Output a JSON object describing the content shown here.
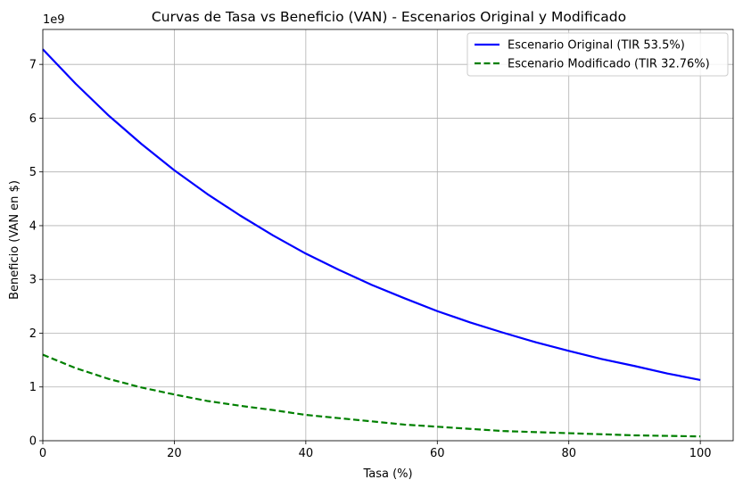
{
  "chart_data": {
    "type": "line",
    "title": "Curvas de Tasa vs Beneficio (VAN) - Escenarios Original y Modificado",
    "xlabel": "Tasa (%)",
    "ylabel": "Beneficio (VAN en $)",
    "y_offset_label": "1e9",
    "xlim": [
      0,
      105
    ],
    "ylim": [
      0,
      7.65
    ],
    "y_multiplier": 1000000000,
    "x_ticks": [
      0,
      20,
      40,
      60,
      80,
      100
    ],
    "y_ticks": [
      0,
      1,
      2,
      3,
      4,
      5,
      6,
      7
    ],
    "grid": true,
    "legend_position": "top-right",
    "x": [
      0,
      5,
      10,
      15,
      20,
      25,
      30,
      35,
      40,
      45,
      50,
      55,
      60,
      65,
      70,
      75,
      80,
      85,
      90,
      95,
      100
    ],
    "series": [
      {
        "name": "Escenario Original (TIR 53.5%)",
        "color": "#0000ff",
        "style": "solid",
        "values": [
          7.28,
          6.64,
          6.05,
          5.52,
          5.03,
          4.59,
          4.19,
          3.82,
          3.48,
          3.18,
          2.9,
          2.65,
          2.41,
          2.2,
          2.01,
          1.83,
          1.67,
          1.52,
          1.39,
          1.25,
          1.13
        ]
      },
      {
        "name": "Escenario Modificado (TIR 32.76%)",
        "color": "#008000",
        "style": "dashed",
        "values": [
          1.6,
          1.35,
          1.15,
          0.99,
          0.86,
          0.74,
          0.65,
          0.57,
          0.48,
          0.42,
          0.36,
          0.3,
          0.26,
          0.22,
          0.18,
          0.16,
          0.14,
          0.12,
          0.1,
          0.09,
          0.08
        ]
      }
    ]
  }
}
